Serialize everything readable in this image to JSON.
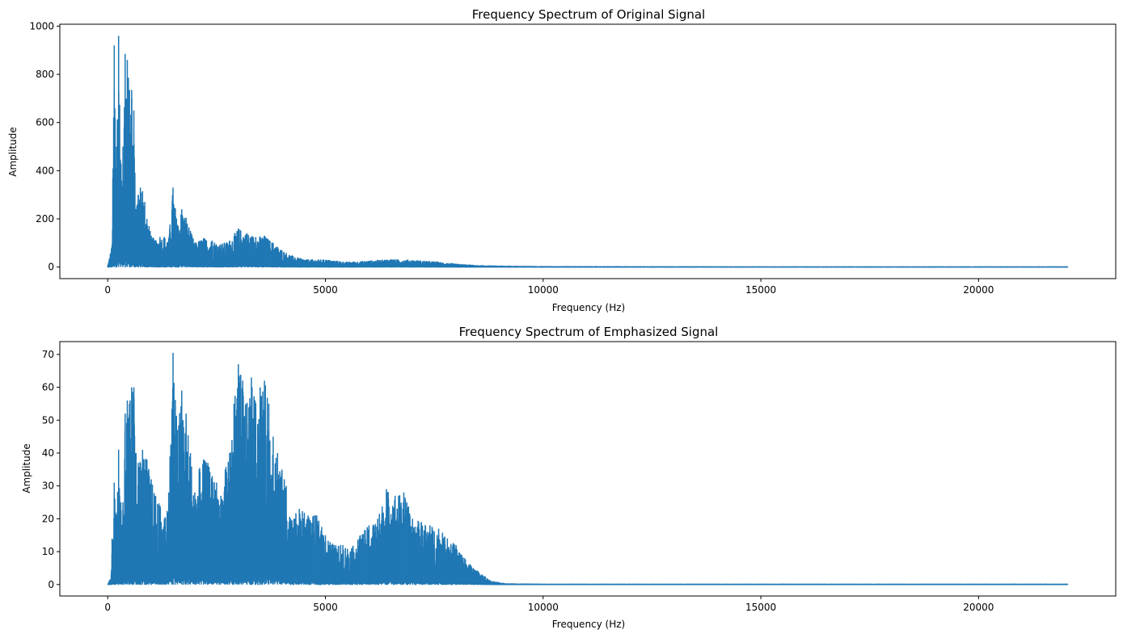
{
  "chart_data": [
    {
      "type": "line",
      "title": "Frequency Spectrum of Original Signal",
      "xlabel": "Frequency (Hz)",
      "ylabel": "Amplitude",
      "xlim": [
        -1100,
        23150
      ],
      "ylim": [
        -48,
        1008
      ],
      "xticks": [
        0,
        5000,
        10000,
        15000,
        20000
      ],
      "xtick_labels": [
        "0",
        "5000",
        "10000",
        "15000",
        "20000"
      ],
      "yticks": [
        0,
        200,
        400,
        600,
        800,
        1000
      ],
      "ytick_labels": [
        "0",
        "200",
        "400",
        "600",
        "800",
        "1000"
      ],
      "grid": false,
      "color": "#1f77b4",
      "series": [
        {
          "x": [
            0,
            100,
            150,
            200,
            250,
            300,
            350,
            400,
            450,
            500,
            550,
            600,
            650,
            700,
            750,
            800,
            850,
            900,
            950,
            1000,
            1100,
            1200,
            1300,
            1400,
            1500,
            1600,
            1700,
            1800,
            1900,
            2000,
            2200,
            2400,
            2600,
            2800,
            3000,
            3200,
            3400,
            3600,
            3800,
            4000,
            4300,
            4600,
            5000,
            5500,
            6000,
            6500,
            7000,
            7500,
            8000,
            8500,
            9000,
            10000,
            15000,
            22050
          ],
          "y": [
            5,
            93,
            920,
            500,
            960,
            420,
            500,
            885,
            860,
            735,
            735,
            650,
            240,
            300,
            330,
            315,
            270,
            200,
            170,
            130,
            110,
            125,
            125,
            115,
            330,
            175,
            240,
            205,
            150,
            100,
            120,
            110,
            95,
            110,
            160,
            140,
            125,
            130,
            100,
            70,
            40,
            30,
            30,
            20,
            25,
            32,
            28,
            22,
            12,
            6,
            4,
            2,
            1,
            1
          ]
        }
      ]
    },
    {
      "type": "line",
      "title": "Frequency Spectrum of Emphasized Signal",
      "xlabel": "Frequency (Hz)",
      "ylabel": "Amplitude",
      "xlim": [
        -1100,
        23150
      ],
      "ylim": [
        -3.5,
        73.9
      ],
      "xticks": [
        0,
        5000,
        10000,
        15000,
        20000
      ],
      "xtick_labels": [
        "0",
        "5000",
        "10000",
        "15000",
        "20000"
      ],
      "yticks": [
        0,
        10,
        20,
        30,
        40,
        50,
        60,
        70
      ],
      "ytick_labels": [
        "0",
        "10",
        "20",
        "30",
        "40",
        "50",
        "60",
        "70"
      ],
      "grid": false,
      "color": "#1f77b4",
      "series": [
        {
          "x": [
            0,
            80,
            100,
            150,
            200,
            250,
            300,
            350,
            400,
            450,
            500,
            550,
            600,
            650,
            700,
            800,
            900,
            1000,
            1100,
            1200,
            1300,
            1400,
            1500,
            1600,
            1700,
            1800,
            1900,
            2000,
            2100,
            2200,
            2300,
            2400,
            2500,
            2600,
            2700,
            2800,
            2900,
            3000,
            3100,
            3200,
            3300,
            3400,
            3500,
            3600,
            3700,
            3800,
            3900,
            4000,
            4100,
            4200,
            4400,
            4600,
            4800,
            5000,
            5200,
            5400,
            5600,
            5800,
            6000,
            6200,
            6400,
            6600,
            6800,
            7000,
            7200,
            7400,
            7600,
            7800,
            8000,
            8200,
            8400,
            8600,
            8800,
            9000,
            9200,
            10000,
            15000,
            22050
          ],
          "y": [
            0,
            3,
            14,
            31,
            20,
            41,
            25,
            25,
            52,
            56,
            55,
            60,
            60,
            40,
            37,
            41,
            38,
            32,
            27,
            24,
            20,
            28,
            70.5,
            47,
            59,
            52,
            40,
            28,
            35,
            38,
            37,
            33,
            31,
            27,
            35,
            40,
            55,
            67,
            62,
            55,
            63,
            55,
            60,
            62,
            55,
            45,
            40,
            35,
            30,
            20,
            23,
            21,
            21,
            15,
            12,
            12,
            11,
            15,
            18,
            20,
            29,
            27,
            28,
            20,
            19,
            18,
            17,
            14,
            12,
            8,
            5,
            3,
            1,
            0.5,
            0.2,
            0.1,
            0.1,
            0.1
          ]
        }
      ]
    }
  ]
}
